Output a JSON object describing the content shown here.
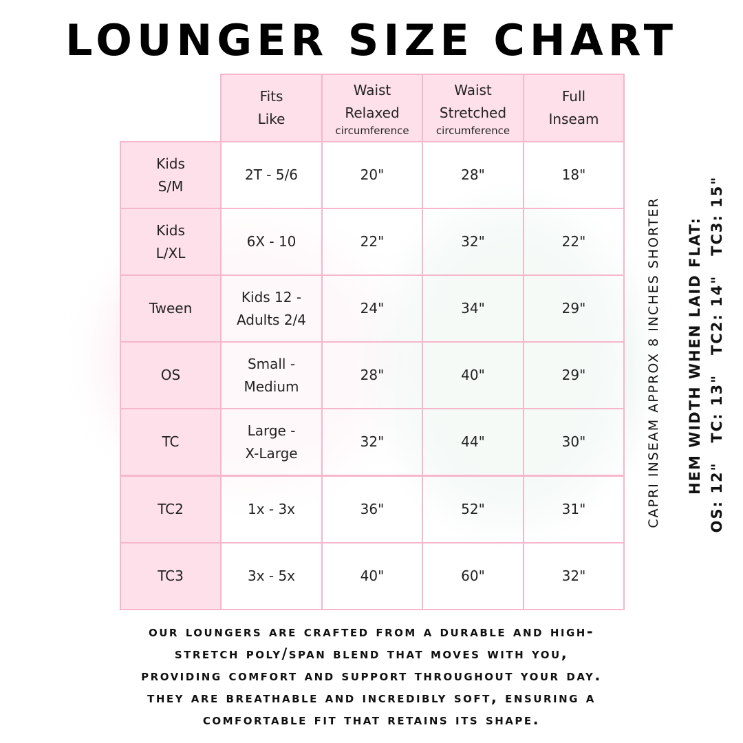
{
  "title": "LOUNGER SIZE CHART",
  "colors": {
    "border": "#f6b6cb",
    "header_fill": "#fde0e9"
  },
  "table": {
    "headers": [
      {
        "line1": "Fits",
        "line2": "Like",
        "sub": ""
      },
      {
        "line1": "Waist",
        "line2": "Relaxed",
        "sub": "circumference"
      },
      {
        "line1": "Waist",
        "line2": "Stretched",
        "sub": "circumference"
      },
      {
        "line1": "Full",
        "line2": "Inseam",
        "sub": ""
      }
    ],
    "rows": [
      {
        "size": [
          "Kids",
          "S/M"
        ],
        "fits": [
          "2T - 5/6"
        ],
        "relaxed": "20\"",
        "stretched": "28\"",
        "inseam": "18\""
      },
      {
        "size": [
          "Kids",
          "L/XL"
        ],
        "fits": [
          "6X - 10"
        ],
        "relaxed": "22\"",
        "stretched": "32\"",
        "inseam": "22\""
      },
      {
        "size": [
          "Tween"
        ],
        "fits": [
          "Kids 12 -",
          "Adults 2/4"
        ],
        "relaxed": "24\"",
        "stretched": "34\"",
        "inseam": "29\""
      },
      {
        "size": [
          "OS"
        ],
        "fits": [
          "Small -",
          "Medium"
        ],
        "relaxed": "28\"",
        "stretched": "40\"",
        "inseam": "29\""
      },
      {
        "size": [
          "TC"
        ],
        "fits": [
          "Large -",
          "X-Large"
        ],
        "relaxed": "32\"",
        "stretched": "44\"",
        "inseam": "30\""
      },
      {
        "size": [
          "TC2"
        ],
        "fits": [
          "1x - 3x"
        ],
        "relaxed": "36\"",
        "stretched": "52\"",
        "inseam": "31\""
      },
      {
        "size": [
          "TC3"
        ],
        "fits": [
          "3x - 5x"
        ],
        "relaxed": "40\"",
        "stretched": "60\"",
        "inseam": "32\""
      }
    ]
  },
  "side_notes": {
    "capri": "CAPRI INSEAM APPROX 8 INCHES SHORTER",
    "hem_title": "HEM WIDTH WHEN LAID FLAT:",
    "hem_values": "OS: 12\"   TC: 13\"   TC2: 14\"   TC3: 15\""
  },
  "description": [
    "Our loungers are crafted from a durable and high-",
    "stretch poly/span blend that moves with you,",
    "providing comfort and support throughout your day.",
    "They are breathable and incredibly soft, ensuring a",
    "comfortable fit that retains its shape."
  ]
}
